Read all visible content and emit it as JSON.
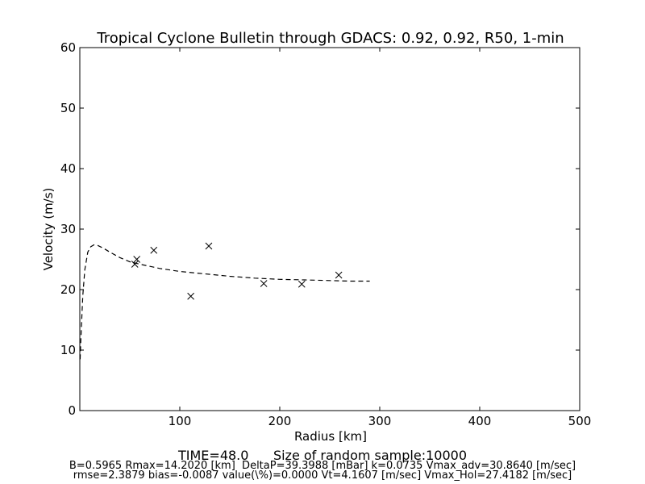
{
  "chart_data": {
    "type": "scatter",
    "title": "Tropical Cyclone Bulletin through GDACS: 0.92, 0.92, R50, 1-min",
    "xlabel": "Radius [km]",
    "ylabel": "Velocity (m/s)",
    "xlim": [
      0,
      500
    ],
    "ylim": [
      0,
      60
    ],
    "x_ticks": [
      100,
      200,
      300,
      400,
      500
    ],
    "y_ticks": [
      0,
      10,
      20,
      30,
      40,
      50,
      60
    ],
    "grid": false,
    "legend": "none",
    "series": [
      {
        "kind": "points",
        "marker": "x",
        "x": [
          55,
          57,
          74,
          111,
          129,
          184,
          222,
          259
        ],
        "y": [
          24.2,
          25.0,
          26.5,
          18.9,
          27.2,
          21.0,
          20.9,
          22.4
        ]
      },
      {
        "kind": "line",
        "style": "dashed",
        "x": [
          0.3,
          1,
          2,
          3,
          5,
          8,
          11,
          14.2,
          18,
          24,
          30,
          40,
          50,
          60,
          80,
          100,
          125,
          150,
          175,
          200,
          225,
          250,
          270,
          290
        ],
        "y": [
          8.5,
          11.5,
          15.5,
          19.0,
          23.3,
          26.2,
          27.1,
          27.4,
          27.3,
          26.8,
          26.2,
          25.3,
          24.6,
          24.2,
          23.5,
          23.0,
          22.6,
          22.2,
          21.9,
          21.7,
          21.6,
          21.5,
          21.4,
          21.4
        ]
      }
    ]
  },
  "captions": {
    "main": "TIME=48.0      Size of random sample:10000",
    "params": "B=0.5965 Rmax=14.2020 [km]  DeltaP=39.3988 [mBar] k=0.0735 Vmax_adv=30.8640 [m/sec]",
    "stats": "rmse=2.3879 bias=-0.0087 value(\\%)=0.0000 Vt=4.1607 [m/sec] Vmax_Hol=27.4182 [m/sec]"
  },
  "colors": {
    "axes": "#000000",
    "background": "#ffffff",
    "marks": "#000000"
  }
}
